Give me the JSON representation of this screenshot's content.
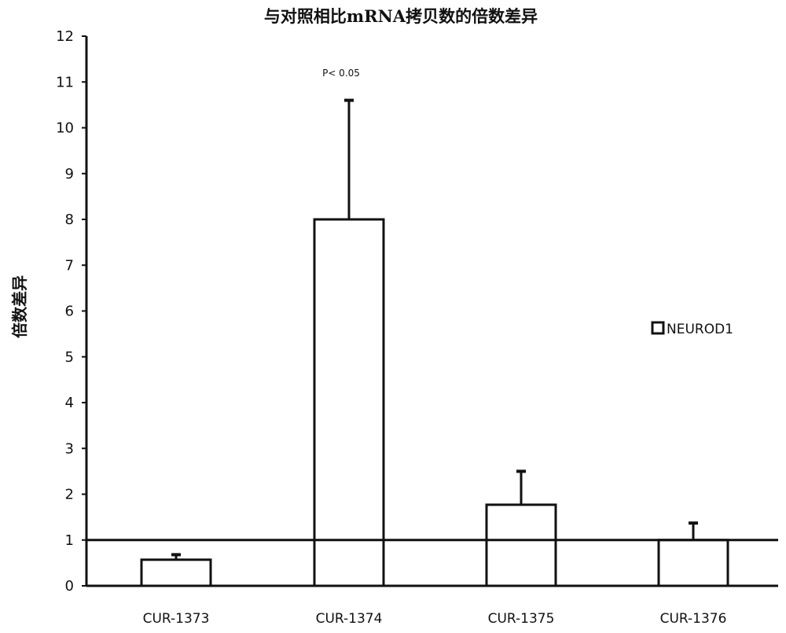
{
  "chart_data": {
    "type": "bar",
    "title": "与对照相比mRNA拷贝数的倍数差异",
    "xlabel": "",
    "ylabel": "倍数差异",
    "categories": [
      "CUR-1373",
      "CUR-1374",
      "CUR-1375",
      "CUR-1376"
    ],
    "series": [
      {
        "name": "NEUROD1",
        "values": [
          0.57,
          8.0,
          1.77,
          1.0
        ],
        "error_upper": [
          0.68,
          10.6,
          2.5,
          1.37
        ]
      }
    ],
    "reference_line": 1,
    "annotations": [
      {
        "category": "CUR-1374",
        "text": "P< 0.05"
      }
    ],
    "ylim": [
      0,
      12
    ],
    "yticks": [
      0,
      1,
      2,
      3,
      4,
      5,
      6,
      7,
      8,
      9,
      10,
      11,
      12
    ],
    "grid": false,
    "legend_position": "right",
    "colors": {
      "bar_fill": "#ffffff",
      "bar_stroke": "#111111"
    }
  }
}
